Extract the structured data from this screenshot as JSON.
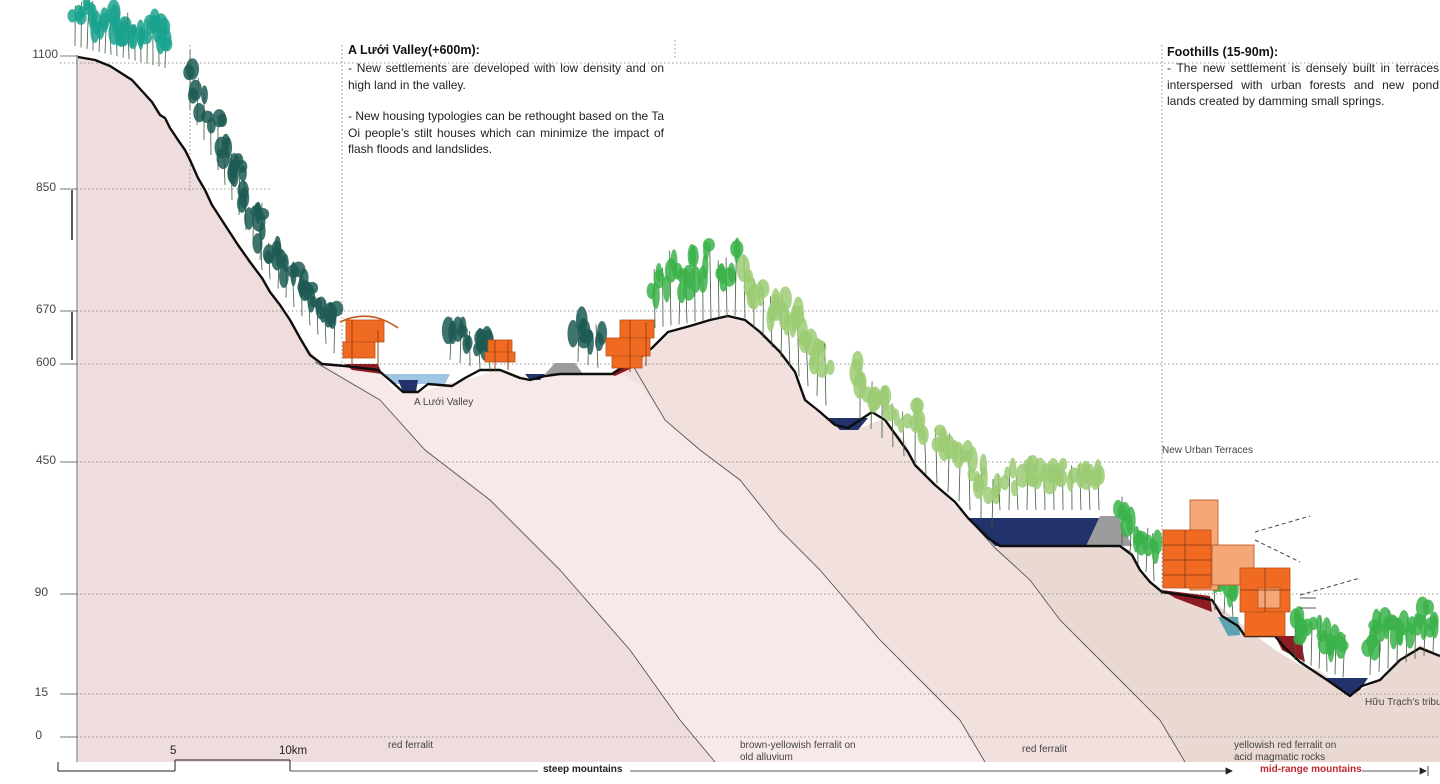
{
  "elevation_axis": {
    "labels": [
      "1100",
      "850",
      "670",
      "600",
      "450",
      "90",
      "15",
      "0"
    ]
  },
  "valley_section": {
    "title": "A Lưới  Valley(+600m):",
    "bullets": [
      "- New settlements are developed with low density and on high land in the valley.",
      "- New housing typologies can be rethought based on the Ta Oi people’s stilt houses which can minimize the impact of flash floods and landslides."
    ]
  },
  "foothills_section": {
    "title": "Foothills (15-90m):",
    "bullets": [
      "- The new settlement is densely built in terraces interspersed with urban forests and new pond lands created by damming small springs."
    ]
  },
  "labels": {
    "valley": "A Lưới Valley",
    "terraces": "New Urban Terraces",
    "tributary": "Hữu Trạch’s tributary"
  },
  "soils": [
    "red ferralit",
    "brown-yellowish ferralit on old alluvium",
    "red ferralit",
    "yellowish red ferralit on acid magmatic rocks"
  ],
  "scale_bar": {
    "mid": "5",
    "end": "10km"
  },
  "zones": {
    "steep": "steep mountains",
    "mid": "mid-range mountains",
    "steep_color": "#222222",
    "mid_color": "#c0282d"
  },
  "colors": {
    "soil1": "#efdcdc",
    "soil2": "#f7e9e7",
    "soil3": "#f1e0de",
    "soil4": "#ead8d2",
    "tree_dark": "#1d5b54",
    "tree_teal": "#1aa38f",
    "tree_green": "#3bb34a",
    "tree_light": "#9ccb74",
    "house": "#f06a22",
    "house_light": "#f5a777",
    "pond": "#22336b",
    "lake": "#9fc6e4",
    "rock": "#9c9c9c",
    "retaining": "#8c1b23"
  }
}
